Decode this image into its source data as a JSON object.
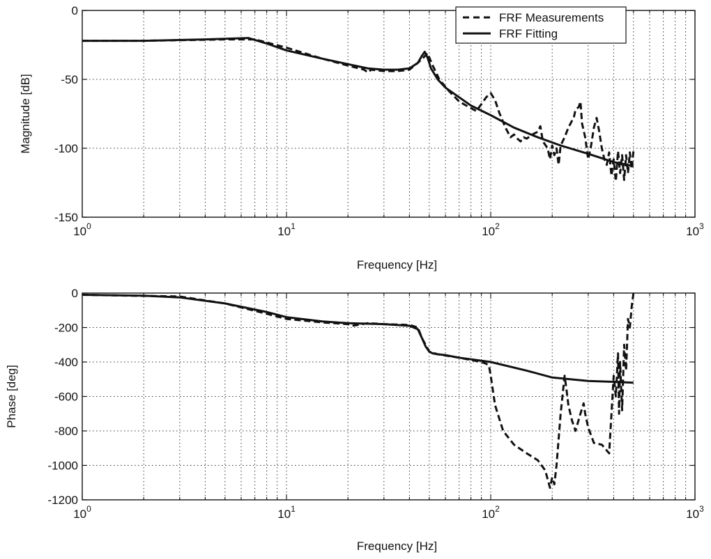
{
  "chart_data": [
    {
      "type": "line",
      "xscale": "log",
      "xlim": [
        1,
        1000
      ],
      "ylim": [
        -150,
        0
      ],
      "grid": true,
      "xlabel": "Frequency [Hz]",
      "ylabel": "Magnitude [dB]",
      "xticks": [
        1,
        10,
        100,
        1000
      ],
      "xtick_labels": [
        {
          "base": "10",
          "exp": "0"
        },
        {
          "base": "10",
          "exp": "1"
        },
        {
          "base": "10",
          "exp": "2"
        },
        {
          "base": "10",
          "exp": "3"
        }
      ],
      "yticks": [
        0,
        -50,
        -100,
        -150
      ],
      "ytick_labels": [
        "0",
        "-50",
        "-100",
        "-150"
      ],
      "legend": {
        "placement": "top-right",
        "entries": [
          {
            "label": "FRF Measurements",
            "style": "dashed"
          },
          {
            "label": "FRF Fitting",
            "style": "solid"
          }
        ]
      },
      "series": [
        {
          "name": "FRF Measurements",
          "style": "dashed",
          "x": [
            1,
            2,
            5,
            7,
            10,
            15,
            20,
            24,
            25,
            26,
            30,
            35,
            40,
            44,
            47,
            49,
            52,
            56,
            62,
            70,
            78,
            85,
            90,
            95,
            100,
            105,
            110,
            118,
            125,
            130,
            135,
            140,
            145,
            150,
            160,
            170,
            175,
            180,
            190,
            195,
            200,
            205,
            210,
            215,
            220,
            230,
            240,
            250,
            255,
            260,
            270,
            275,
            280,
            290,
            300,
            310,
            320,
            330,
            340,
            350,
            360,
            370,
            380,
            390,
            400,
            410,
            420,
            430,
            440,
            450,
            460,
            470,
            480,
            490,
            500
          ],
          "y": [
            -22,
            -22,
            -21,
            -21,
            -27,
            -35,
            -40,
            -43,
            -45,
            -43,
            -44,
            -44,
            -43,
            -38,
            -34,
            -31,
            -40,
            -50,
            -58,
            -66,
            -70,
            -73,
            -68,
            -63,
            -60,
            -65,
            -74,
            -85,
            -92,
            -90,
            -93,
            -95,
            -92,
            -93,
            -90,
            -88,
            -84,
            -95,
            -100,
            -108,
            -98,
            -105,
            -100,
            -112,
            -98,
            -92,
            -85,
            -80,
            -78,
            -72,
            -70,
            -66,
            -82,
            -92,
            -108,
            -98,
            -85,
            -78,
            -88,
            -100,
            -108,
            -112,
            -103,
            -120,
            -108,
            -124,
            -102,
            -118,
            -105,
            -123,
            -105,
            -118,
            -103,
            -115,
            -102
          ]
        },
        {
          "name": "FRF Fitting",
          "style": "solid",
          "x": [
            1,
            2,
            4,
            6.5,
            8,
            10,
            15,
            20,
            25,
            30,
            35,
            40,
            44,
            46,
            47.5,
            49,
            51,
            55,
            60,
            70,
            80,
            100,
            130,
            170,
            220,
            300,
            400,
            500
          ],
          "y": [
            -22,
            -22,
            -21,
            -20,
            -24,
            -29,
            -35,
            -39,
            -42,
            -43,
            -43,
            -42,
            -38,
            -33,
            -30,
            -34,
            -42,
            -50,
            -56,
            -63,
            -69,
            -76,
            -85,
            -92,
            -98,
            -104,
            -110,
            -113
          ]
        }
      ]
    },
    {
      "type": "line",
      "xscale": "log",
      "xlim": [
        1,
        1000
      ],
      "ylim": [
        -1200,
        0
      ],
      "grid": true,
      "xlabel": "Frequency [Hz]",
      "ylabel": "Phase [deg]",
      "xticks": [
        1,
        10,
        100,
        1000
      ],
      "xtick_labels": [
        {
          "base": "10",
          "exp": "0"
        },
        {
          "base": "10",
          "exp": "1"
        },
        {
          "base": "10",
          "exp": "2"
        },
        {
          "base": "10",
          "exp": "3"
        }
      ],
      "yticks": [
        0,
        -200,
        -400,
        -600,
        -800,
        -1000,
        -1200
      ],
      "ytick_labels": [
        "0",
        "-200",
        "-400",
        "-600",
        "-800",
        "-1000",
        "-1200"
      ],
      "series": [
        {
          "name": "FRF Measurements",
          "style": "dashed",
          "x": [
            1,
            3,
            5,
            8,
            10,
            15,
            20,
            21,
            25,
            30,
            40,
            44,
            46,
            48,
            50,
            55,
            70,
            90,
            95,
            98,
            100,
            105,
            115,
            130,
            150,
            170,
            185,
            195,
            200,
            205,
            210,
            220,
            230,
            235,
            240,
            250,
            260,
            275,
            285,
            290,
            300,
            320,
            350,
            380,
            400,
            410,
            420,
            425,
            430,
            440,
            450,
            460,
            470,
            480,
            490,
            500
          ],
          "y": [
            -10,
            -20,
            -60,
            -120,
            -150,
            -170,
            -180,
            -190,
            -175,
            -180,
            -185,
            -200,
            -260,
            -300,
            -340,
            -355,
            -375,
            -400,
            -410,
            -420,
            -480,
            -650,
            -800,
            -880,
            -930,
            -970,
            -1030,
            -1130,
            -1070,
            -1110,
            -1000,
            -700,
            -480,
            -560,
            -650,
            -740,
            -800,
            -700,
            -640,
            -700,
            -780,
            -870,
            -880,
            -930,
            -480,
            -600,
            -350,
            -700,
            -400,
            -680,
            -300,
            -450,
            -150,
            -200,
            -80,
            0
          ]
        },
        {
          "name": "FRF Fitting",
          "style": "solid",
          "x": [
            1,
            2,
            3,
            5,
            8,
            10,
            15,
            20,
            30,
            40,
            44,
            46,
            48,
            50,
            52,
            55,
            60,
            70,
            100,
            150,
            200,
            300,
            400,
            500
          ],
          "y": [
            -10,
            -15,
            -25,
            -60,
            -110,
            -140,
            -165,
            -175,
            -180,
            -190,
            -210,
            -260,
            -310,
            -340,
            -350,
            -355,
            -360,
            -375,
            -400,
            -450,
            -490,
            -510,
            -515,
            -520
          ]
        }
      ]
    }
  ]
}
